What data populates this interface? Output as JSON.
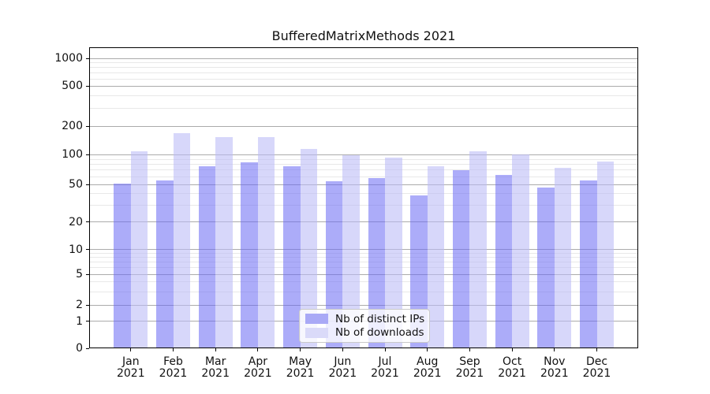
{
  "title": "BufferedMatrixMethods 2021",
  "chart_data": {
    "type": "bar",
    "title": "BufferedMatrixMethods 2021",
    "categories": [
      "Jan",
      "Feb",
      "Mar",
      "Apr",
      "May",
      "Jun",
      "Jul",
      "Aug",
      "Sep",
      "Oct",
      "Nov",
      "Dec"
    ],
    "year_label": "2021",
    "series": [
      {
        "name": "Nb of distinct IPs",
        "values": [
          51,
          55,
          77,
          84,
          76,
          54,
          58,
          38,
          69,
          62,
          46,
          55
        ]
      },
      {
        "name": "Nb of downloads",
        "values": [
          108,
          170,
          152,
          154,
          115,
          98,
          93,
          77,
          108,
          100,
          74,
          85
        ]
      }
    ],
    "xlabel": "",
    "ylabel": "",
    "y_scale": "asinh (log-like with 0 baseline)",
    "y_ticks": [
      0,
      1,
      2,
      5,
      10,
      20,
      50,
      100,
      200,
      500,
      1000
    ],
    "y_minor_ticks": [
      3,
      4,
      6,
      7,
      8,
      9,
      30,
      40,
      60,
      70,
      80,
      90,
      300,
      400,
      600,
      700,
      800,
      900
    ],
    "ylim": [
      0,
      1300
    ],
    "grid": "horizontal major and minor gridlines",
    "legend_position": "lower center"
  },
  "colors": {
    "ips_fill": "rgba(104,104,244,0.55)",
    "downloads_fill": "rgba(186,186,246,0.58)",
    "ips_swatch": "#a9a9f6",
    "downloads_swatch": "#dadaf9",
    "grid_major": "#ababab",
    "grid_minor": "#e8e8e8",
    "axis_spine": "#000000",
    "legend_border": "#c9c9c9",
    "text": "#111111",
    "background": "#ffffff"
  }
}
